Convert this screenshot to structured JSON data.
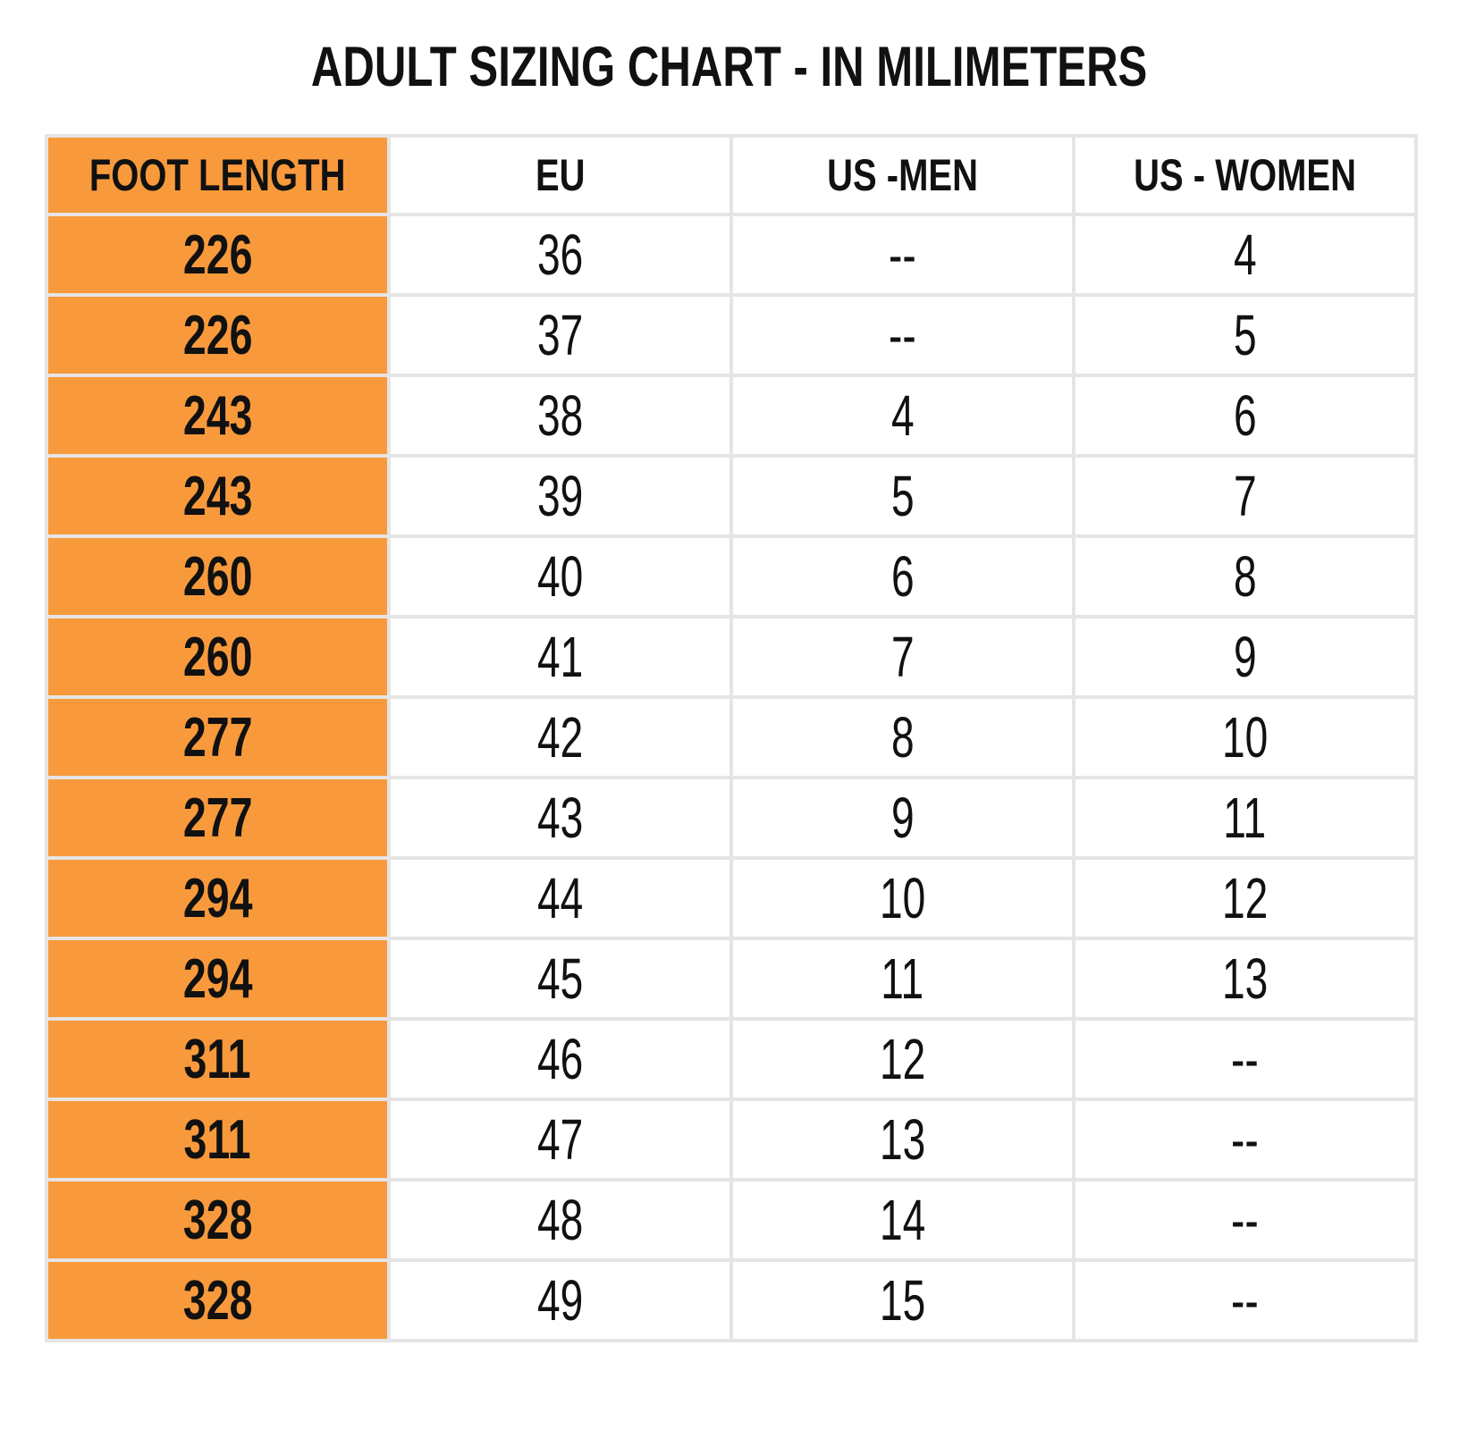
{
  "title": "ADULT SIZING CHART - IN MILIMETERS",
  "chart_data": {
    "type": "table",
    "columns": [
      "FOOT LENGTH",
      "EU",
      "US -MEN",
      "US - WOMEN"
    ],
    "rows": [
      [
        "226",
        "36",
        "--",
        "4"
      ],
      [
        "226",
        "37",
        "--",
        "5"
      ],
      [
        "243",
        "38",
        "4",
        "6"
      ],
      [
        "243",
        "39",
        "5",
        "7"
      ],
      [
        "260",
        "40",
        "6",
        "8"
      ],
      [
        "260",
        "41",
        "7",
        "9"
      ],
      [
        "277",
        "42",
        "8",
        "10"
      ],
      [
        "277",
        "43",
        "9",
        "11"
      ],
      [
        "294",
        "44",
        "10",
        "12"
      ],
      [
        "294",
        "45",
        "11",
        "13"
      ],
      [
        "311",
        "46",
        "12",
        "--"
      ],
      [
        "311",
        "47",
        "13",
        "--"
      ],
      [
        "328",
        "48",
        "14",
        "--"
      ],
      [
        "328",
        "49",
        "15",
        "--"
      ]
    ]
  },
  "colors": {
    "header_fill": "#F89A3C",
    "grid": "#E5E5E5",
    "text": "#111111"
  }
}
